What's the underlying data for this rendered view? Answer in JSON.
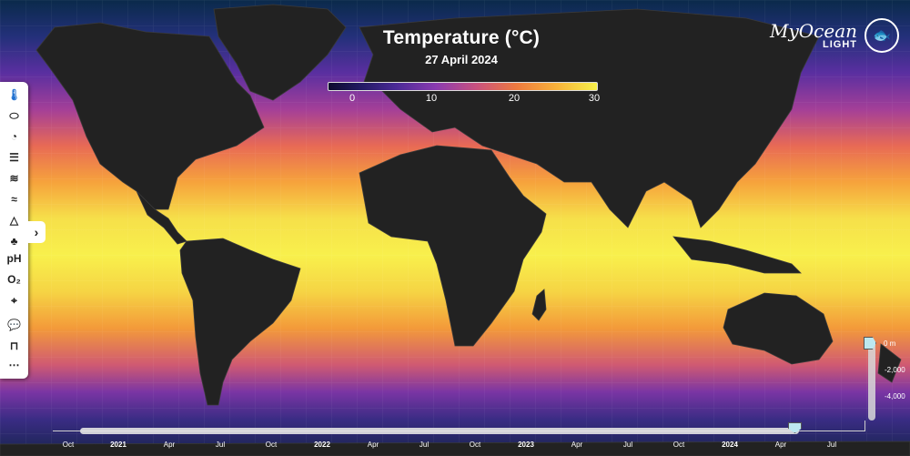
{
  "header": {
    "title": "Temperature (°C)",
    "date": "27 April 2024"
  },
  "colorbar": {
    "ticks": [
      "0",
      "10",
      "20",
      "30"
    ],
    "colors": [
      "#0d0b2e",
      "#221a63",
      "#4a2a96",
      "#8a3bb0",
      "#c8517f",
      "#ee7a3f",
      "#f8b23a",
      "#f6f04a"
    ]
  },
  "logo": {
    "main": "MyOcean",
    "sub": "LIGHT"
  },
  "toolbar": {
    "tools": [
      {
        "name": "temperature-icon",
        "glyph": "🌡"
      },
      {
        "name": "salinity-icon",
        "glyph": "⬭"
      },
      {
        "name": "speedometer-icon",
        "glyph": "◔"
      },
      {
        "name": "currents-icon",
        "glyph": "☰"
      },
      {
        "name": "waves-icon",
        "glyph": "≋"
      },
      {
        "name": "wind-icon",
        "glyph": "≈"
      },
      {
        "name": "sea-ice-icon",
        "glyph": "△"
      },
      {
        "name": "chlorophyll-leaf-icon",
        "glyph": "♣"
      },
      {
        "name": "ph-label",
        "glyph": "pH"
      },
      {
        "name": "oxygen-label",
        "glyph": "O₂"
      },
      {
        "name": "plankton-icon",
        "glyph": "⌖"
      },
      {
        "name": "chat-icon",
        "glyph": "💬"
      },
      {
        "name": "door-exit-icon",
        "glyph": "⊓"
      },
      {
        "name": "more-icon",
        "glyph": "⋯"
      }
    ],
    "expand_glyph": "›"
  },
  "depth": {
    "labels": [
      "0 m",
      "-2,000",
      "-4,000"
    ]
  },
  "timeline": {
    "labels": [
      "Oct",
      "2021",
      "Apr",
      "Jul",
      "Oct",
      "2022",
      "Apr",
      "Jul",
      "Oct",
      "2023",
      "Apr",
      "Jul",
      "Oct",
      "2024",
      "Apr",
      "Jul"
    ]
  }
}
